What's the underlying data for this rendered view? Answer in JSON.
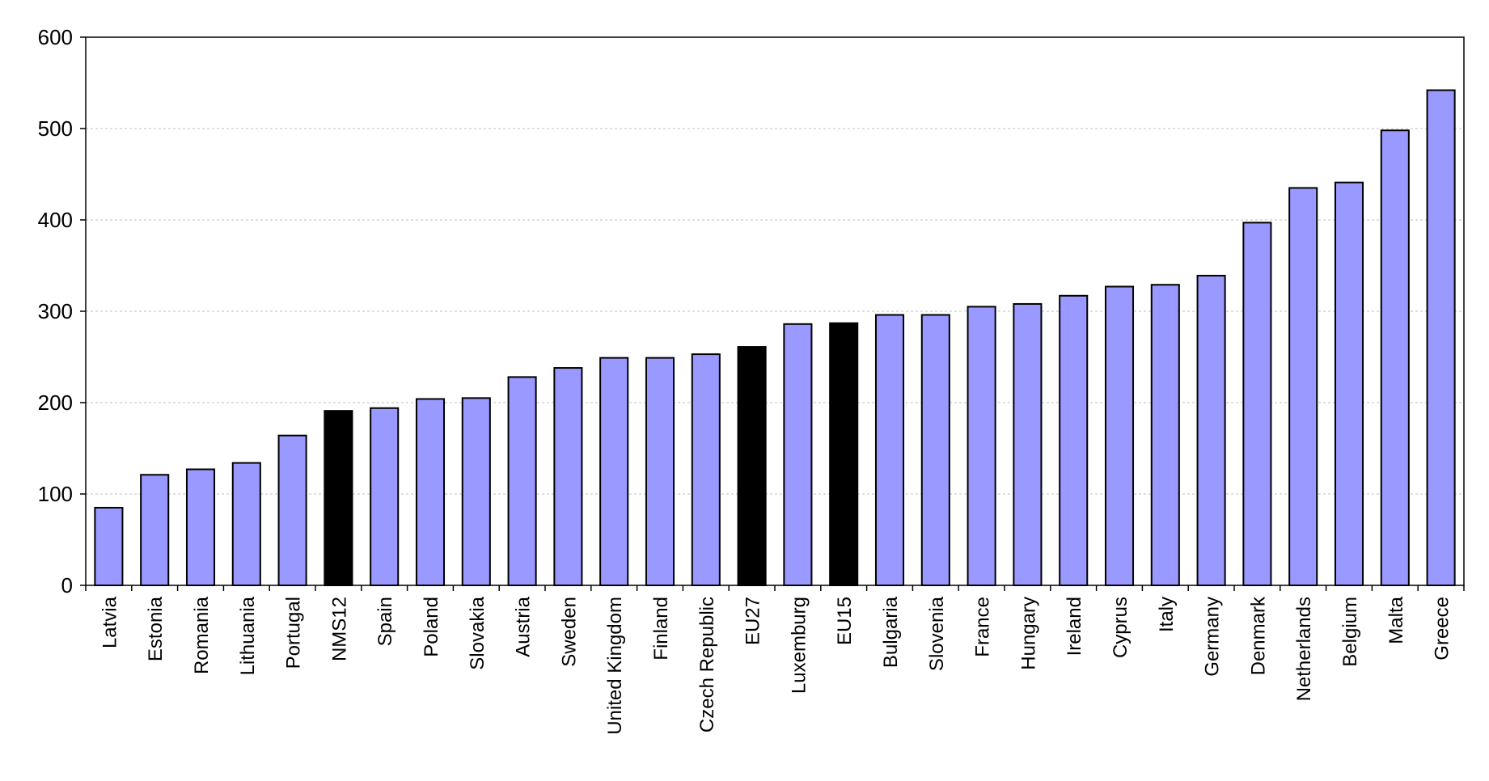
{
  "chart_data": {
    "type": "bar",
    "title": "",
    "xlabel": "",
    "ylabel": "",
    "ylim": [
      0,
      600
    ],
    "yticks": [
      0,
      100,
      200,
      300,
      400,
      500,
      600
    ],
    "grid": true,
    "colors": {
      "default": "#9999ff",
      "highlight": "#000000"
    },
    "categories": [
      "Latvia",
      "Estonia",
      "Romania",
      "Lithuania",
      "Portugal",
      "NMS12",
      "Spain",
      "Poland",
      "Slovakia",
      "Austria",
      "Sweden",
      "United Kingdom",
      "Finland",
      "Czech Republic",
      "EU27",
      "Luxemburg",
      "EU15",
      "Bulgaria",
      "Slovenia",
      "France",
      "Hungary",
      "Ireland",
      "Cyprus",
      "Italy",
      "Germany",
      "Denmark",
      "Netherlands",
      "Belgium",
      "Malta",
      "Greece"
    ],
    "values": [
      85,
      121,
      127,
      134,
      164,
      191,
      194,
      204,
      205,
      228,
      238,
      249,
      249,
      253,
      261,
      286,
      287,
      296,
      296,
      305,
      308,
      317,
      327,
      329,
      339,
      397,
      435,
      441,
      498,
      542
    ],
    "highlight": [
      "NMS12",
      "EU27",
      "EU15"
    ]
  }
}
